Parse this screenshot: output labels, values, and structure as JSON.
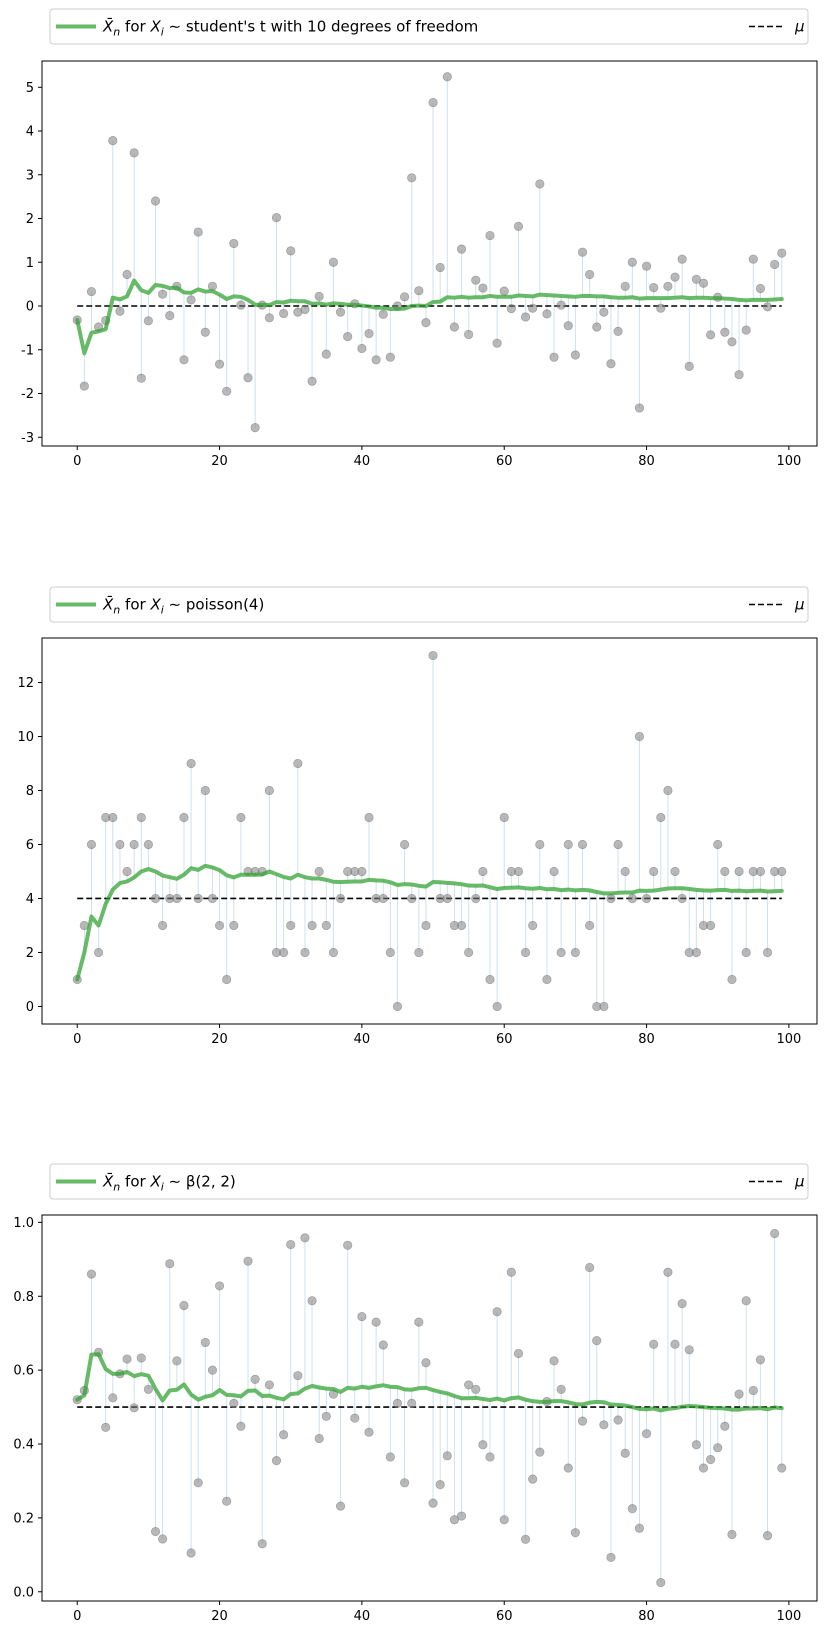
{
  "chart_data": [
    {
      "type": "line",
      "xlim": [
        -4.95,
        103.95
      ],
      "ylim": [
        -3.2,
        5.6
      ],
      "xticks": [
        "0",
        "20",
        "40",
        "60",
        "80",
        "100"
      ],
      "yticks": [
        "-3",
        "-2",
        "-1",
        "0",
        "1",
        "2",
        "3",
        "4",
        "5"
      ],
      "legend": {
        "position": "top (above axes)",
        "series_label_prefix": "for",
        "distribution": "student's t with 10 degrees of freedom",
        "mu_label": "μ"
      },
      "mu": 0,
      "samples_x_start": 0,
      "samples": [
        -0.32,
        -1.83,
        0.33,
        -0.48,
        -0.33,
        3.78,
        -0.12,
        0.72,
        3.5,
        -1.65,
        -0.34,
        2.4,
        0.27,
        -0.22,
        0.45,
        -1.23,
        0.14,
        1.69,
        -0.6,
        0.45,
        -1.33,
        -1.95,
        1.43,
        0.02,
        -1.64,
        -2.78,
        0.02,
        -0.27,
        2.02,
        -0.17,
        1.26,
        -0.14,
        -0.08,
        -1.72,
        0.22,
        -1.1,
        1.0,
        -0.14,
        -0.7,
        0.05,
        -0.97,
        -0.63,
        -1.23,
        -0.19,
        -1.17,
        0.0,
        0.21,
        2.93,
        0.35,
        -0.38,
        4.65,
        0.88,
        5.24,
        -0.48,
        1.3,
        -0.65,
        0.59,
        0.41,
        1.61,
        -0.85,
        0.34,
        -0.06,
        1.82,
        -0.25,
        -0.05,
        2.79,
        -0.18,
        -1.17,
        0.02,
        -0.45,
        -1.12,
        1.23,
        0.72,
        -0.48,
        -0.14,
        -1.32,
        -0.58,
        0.45,
        1.0,
        -2.33,
        0.91,
        0.42,
        -0.05,
        0.45,
        0.66,
        1.07,
        -1.38,
        0.61,
        0.52,
        -0.66,
        0.2,
        -0.6,
        -0.82,
        -1.57,
        -0.55,
        1.07,
        0.4,
        -0.02,
        0.95,
        1.21
      ],
      "running_mean": [
        -0.32,
        -1.08,
        -0.61,
        -0.58,
        -0.53,
        0.19,
        0.15,
        0.22,
        0.58,
        0.36,
        0.3,
        0.48,
        0.46,
        0.41,
        0.42,
        0.31,
        0.3,
        0.38,
        0.33,
        0.34,
        0.26,
        0.16,
        0.22,
        0.21,
        0.14,
        0.03,
        0.03,
        0.02,
        0.09,
        0.08,
        0.12,
        0.11,
        0.11,
        0.05,
        0.06,
        0.03,
        0.06,
        0.05,
        0.03,
        0.03,
        0.01,
        -0.01,
        -0.04,
        -0.04,
        -0.07,
        -0.07,
        -0.06,
        0.0,
        0.01,
        0.0,
        0.09,
        0.1,
        0.2,
        0.19,
        0.21,
        0.19,
        0.2,
        0.2,
        0.23,
        0.21,
        0.21,
        0.21,
        0.24,
        0.23,
        0.22,
        0.26,
        0.25,
        0.24,
        0.23,
        0.22,
        0.21,
        0.23,
        0.23,
        0.22,
        0.22,
        0.2,
        0.19,
        0.19,
        0.2,
        0.17,
        0.18,
        0.18,
        0.18,
        0.18,
        0.19,
        0.2,
        0.18,
        0.19,
        0.19,
        0.18,
        0.18,
        0.17,
        0.16,
        0.14,
        0.13,
        0.14,
        0.14,
        0.14,
        0.15,
        0.16
      ]
    },
    {
      "type": "line",
      "xlim": [
        -4.95,
        103.95
      ],
      "ylim": [
        -0.65,
        13.65
      ],
      "xticks": [
        "0",
        "20",
        "40",
        "60",
        "80",
        "100"
      ],
      "yticks": [
        "0",
        "2",
        "4",
        "6",
        "8",
        "10",
        "12"
      ],
      "legend": {
        "position": "top (above axes)",
        "series_label_prefix": "for",
        "distribution": "poisson(4)",
        "mu_label": "μ"
      },
      "mu": 4,
      "samples_x_start": 0,
      "samples": [
        1,
        3,
        6,
        2,
        7,
        7,
        6,
        5,
        6,
        7,
        6,
        4,
        3,
        4,
        4,
        7,
        9,
        4,
        8,
        4,
        3,
        1,
        3,
        7,
        5,
        5,
        5,
        8,
        2,
        2,
        3,
        9,
        2,
        3,
        5,
        3,
        2,
        4,
        5,
        5,
        5,
        7,
        4,
        4,
        2,
        0,
        6,
        4,
        2,
        3,
        13,
        4,
        4,
        3,
        3,
        2,
        4,
        5,
        1,
        0,
        7,
        5,
        5,
        2,
        3,
        6,
        1,
        5,
        2,
        6,
        2,
        6,
        3,
        0,
        0,
        4,
        6,
        5,
        4,
        10,
        4,
        5,
        7,
        8,
        5,
        4,
        2,
        2,
        3,
        3,
        6,
        5,
        1,
        5,
        2,
        5,
        5,
        2,
        5,
        5
      ],
      "running_mean": [
        1.0,
        2.0,
        3.33,
        3.0,
        3.8,
        4.33,
        4.57,
        4.63,
        4.78,
        5.0,
        5.09,
        5.0,
        4.85,
        4.79,
        4.73,
        4.88,
        5.12,
        5.06,
        5.21,
        5.15,
        5.05,
        4.86,
        4.78,
        4.88,
        4.88,
        4.88,
        4.89,
        5.0,
        4.9,
        4.8,
        4.74,
        4.88,
        4.79,
        4.74,
        4.74,
        4.69,
        4.62,
        4.61,
        4.62,
        4.63,
        4.63,
        4.69,
        4.67,
        4.66,
        4.6,
        4.5,
        4.53,
        4.52,
        4.47,
        4.44,
        4.61,
        4.6,
        4.58,
        4.56,
        4.53,
        4.48,
        4.47,
        4.48,
        4.42,
        4.35,
        4.39,
        4.4,
        4.41,
        4.38,
        4.36,
        4.39,
        4.34,
        4.35,
        4.31,
        4.33,
        4.3,
        4.32,
        4.3,
        4.24,
        4.19,
        4.19,
        4.21,
        4.22,
        4.22,
        4.29,
        4.28,
        4.29,
        4.33,
        4.37,
        4.38,
        4.38,
        4.35,
        4.32,
        4.3,
        4.29,
        4.31,
        4.32,
        4.28,
        4.29,
        4.27,
        4.28,
        4.29,
        4.26,
        4.27,
        4.28
      ]
    },
    {
      "type": "line",
      "xlim": [
        -4.95,
        103.95
      ],
      "ylim": [
        -0.025,
        1.02
      ],
      "xticks": [
        "0",
        "20",
        "40",
        "60",
        "80",
        "100"
      ],
      "yticks": [
        "0.0",
        "0.2",
        "0.4",
        "0.6",
        "0.8",
        "1.0"
      ],
      "legend": {
        "position": "top (above axes)",
        "series_label_prefix": "for",
        "distribution": "β(2, 2)",
        "mu_label": "μ"
      },
      "mu": 0.5,
      "samples_x_start": 0,
      "samples": [
        0.52,
        0.545,
        0.86,
        0.648,
        0.445,
        0.525,
        0.59,
        0.63,
        0.498,
        0.633,
        0.548,
        0.163,
        0.143,
        0.888,
        0.625,
        0.775,
        0.105,
        0.295,
        0.675,
        0.6,
        0.828,
        0.245,
        0.51,
        0.448,
        0.895,
        0.575,
        0.13,
        0.56,
        0.355,
        0.425,
        0.94,
        0.585,
        0.958,
        0.788,
        0.415,
        0.475,
        0.535,
        0.232,
        0.938,
        0.47,
        0.745,
        0.432,
        0.73,
        0.668,
        0.365,
        0.51,
        0.295,
        0.51,
        0.73,
        0.62,
        0.24,
        0.29,
        0.368,
        0.195,
        0.205,
        0.56,
        0.548,
        0.398,
        0.365,
        0.758,
        0.195,
        0.865,
        0.645,
        0.142,
        0.305,
        0.378,
        0.515,
        0.625,
        0.548,
        0.335,
        0.16,
        0.462,
        0.878,
        0.68,
        0.452,
        0.093,
        0.465,
        0.375,
        0.225,
        0.172,
        0.428,
        0.67,
        0.025,
        0.865,
        0.67,
        0.78,
        0.655,
        0.398,
        0.335,
        0.358,
        0.39,
        0.448,
        0.155,
        0.535,
        0.788,
        0.545,
        0.628,
        0.152,
        0.97,
        0.335
      ],
      "running_mean": [
        0.52,
        0.532,
        0.642,
        0.643,
        0.603,
        0.59,
        0.59,
        0.595,
        0.584,
        0.589,
        0.585,
        0.549,
        0.518,
        0.545,
        0.547,
        0.561,
        0.534,
        0.52,
        0.528,
        0.532,
        0.546,
        0.533,
        0.532,
        0.529,
        0.544,
        0.545,
        0.53,
        0.531,
        0.525,
        0.521,
        0.535,
        0.537,
        0.55,
        0.557,
        0.553,
        0.55,
        0.549,
        0.541,
        0.552,
        0.55,
        0.555,
        0.552,
        0.556,
        0.559,
        0.555,
        0.554,
        0.548,
        0.547,
        0.551,
        0.552,
        0.546,
        0.541,
        0.537,
        0.53,
        0.524,
        0.524,
        0.525,
        0.522,
        0.519,
        0.523,
        0.518,
        0.524,
        0.526,
        0.52,
        0.516,
        0.514,
        0.514,
        0.516,
        0.516,
        0.513,
        0.508,
        0.507,
        0.512,
        0.514,
        0.513,
        0.507,
        0.506,
        0.504,
        0.5,
        0.495,
        0.494,
        0.496,
        0.491,
        0.495,
        0.497,
        0.501,
        0.503,
        0.502,
        0.5,
        0.498,
        0.497,
        0.496,
        0.493,
        0.493,
        0.496,
        0.496,
        0.497,
        0.494,
        0.499,
        0.497
      ]
    }
  ],
  "colors": {
    "running_mean": "#2ca02c",
    "samples": "#808080",
    "stems": "#1f77b4",
    "mu_line": "#000000",
    "axes": "#000000",
    "legend_border": "#cccccc"
  }
}
